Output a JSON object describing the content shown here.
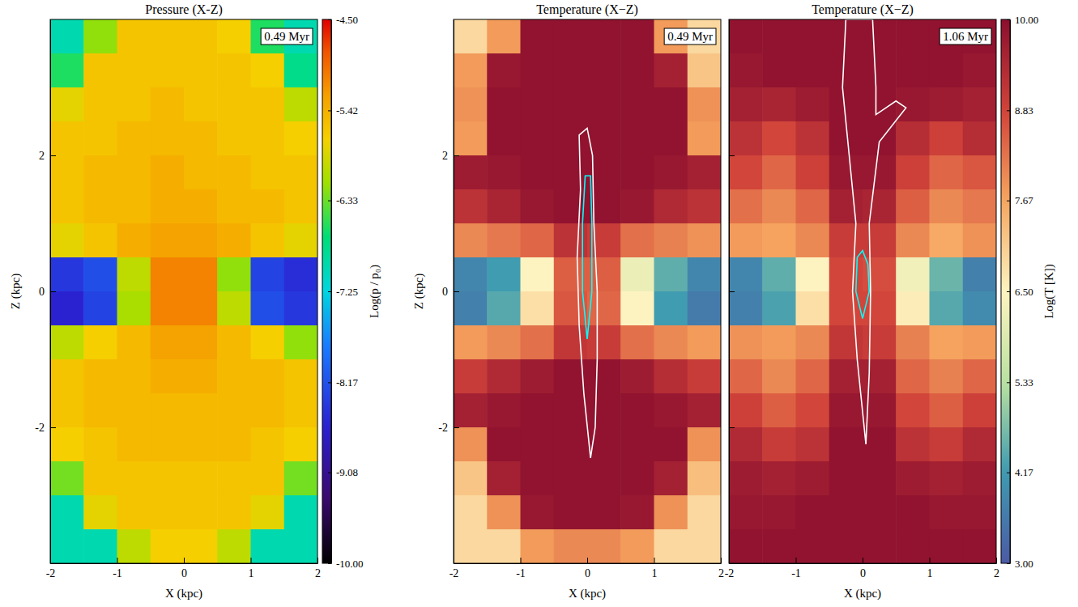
{
  "chart_data": [
    {
      "type": "heatmap",
      "title": "Pressure (X-Z)",
      "x_label": "X (kpc)",
      "y_label": "Z (kpc)",
      "annotation": "0.49 Myr",
      "xlim": [
        -2,
        2
      ],
      "ylim": [
        -4,
        4
      ],
      "xticks": [
        -2,
        -1,
        0,
        1,
        2
      ],
      "yticks": [
        -2,
        0,
        2
      ],
      "color": "jet",
      "color_range": [
        -10,
        -4.5
      ],
      "colorbar": {
        "label": "Log(p / p₀)",
        "ticks": [
          {
            "value": -4.5,
            "label": "-4.50"
          },
          {
            "value": -5.42,
            "label": "-5.42"
          },
          {
            "value": -6.33,
            "label": "-6.33"
          },
          {
            "value": -7.25,
            "label": "-7.25"
          },
          {
            "value": -8.17,
            "label": "-8.17"
          },
          {
            "value": -9.08,
            "label": "-9.08"
          },
          {
            "value": -10,
            "label": "-10.00"
          }
        ]
      },
      "x": [
        -1.75,
        -1.25,
        -0.75,
        -0.25,
        0.25,
        0.75,
        1.25,
        1.75
      ],
      "y": [
        3.75,
        3.25,
        2.75,
        2.25,
        1.75,
        1.25,
        0.75,
        0.25,
        -0.25,
        -0.75,
        -1.25,
        -1.75,
        -2.25,
        -2.75,
        -3.25,
        -3.75
      ],
      "values": [
        [
          -7.0,
          -6.2,
          -5.6,
          -5.6,
          -5.6,
          -5.7,
          -6.6,
          -7.0
        ],
        [
          -6.6,
          -5.6,
          -5.6,
          -5.6,
          -5.6,
          -5.6,
          -5.7,
          -6.8
        ],
        [
          -5.8,
          -5.6,
          -5.6,
          -5.5,
          -5.6,
          -5.6,
          -5.6,
          -6.0
        ],
        [
          -5.6,
          -5.6,
          -5.5,
          -5.5,
          -5.5,
          -5.6,
          -5.6,
          -5.7
        ],
        [
          -5.6,
          -5.5,
          -5.5,
          -5.4,
          -5.5,
          -5.5,
          -5.6,
          -5.6
        ],
        [
          -5.6,
          -5.5,
          -5.5,
          -5.4,
          -5.4,
          -5.5,
          -5.5,
          -5.6
        ],
        [
          -5.8,
          -5.6,
          -5.4,
          -5.3,
          -5.3,
          -5.4,
          -5.6,
          -5.8
        ],
        [
          -8.4,
          -8.2,
          -6.0,
          -5.1,
          -5.1,
          -6.2,
          -8.3,
          -8.5
        ],
        [
          -8.6,
          -8.3,
          -6.1,
          -5.1,
          -5.1,
          -6.0,
          -8.2,
          -8.4
        ],
        [
          -6.0,
          -5.7,
          -5.5,
          -5.3,
          -5.3,
          -5.5,
          -5.7,
          -6.2
        ],
        [
          -5.6,
          -5.5,
          -5.5,
          -5.4,
          -5.4,
          -5.5,
          -5.5,
          -5.6
        ],
        [
          -5.6,
          -5.5,
          -5.5,
          -5.5,
          -5.5,
          -5.5,
          -5.5,
          -5.6
        ],
        [
          -5.7,
          -5.6,
          -5.5,
          -5.5,
          -5.5,
          -5.5,
          -5.6,
          -5.7
        ],
        [
          -6.3,
          -5.6,
          -5.6,
          -5.6,
          -5.6,
          -5.6,
          -5.6,
          -6.3
        ],
        [
          -7.0,
          -5.8,
          -5.6,
          -5.6,
          -5.6,
          -5.6,
          -5.8,
          -7.0
        ],
        [
          -7.0,
          -7.0,
          -6.0,
          -5.7,
          -5.7,
          -6.0,
          -7.0,
          -7.0
        ]
      ]
    },
    {
      "type": "heatmap",
      "title": "Temperature (X−Z)",
      "x_label": "X (kpc)",
      "y_label": "Z (kpc)",
      "annotation": "0.49 Myr",
      "xlim": [
        -2,
        2
      ],
      "ylim": [
        -4,
        4
      ],
      "xticks": [
        -2,
        -1,
        0,
        1,
        2
      ],
      "yticks": [
        -2,
        0,
        2
      ],
      "color": "spectral",
      "color_range": [
        3,
        10
      ],
      "x": [
        -1.75,
        -1.25,
        -0.75,
        -0.25,
        0.25,
        0.75,
        1.25,
        1.75
      ],
      "y": [
        3.75,
        3.25,
        2.75,
        2.25,
        1.75,
        1.25,
        0.75,
        0.25,
        -0.25,
        -0.75,
        -1.25,
        -1.75,
        -2.25,
        -2.75,
        -3.25,
        -3.75
      ],
      "values": [
        [
          6.9,
          7.8,
          9.9,
          9.9,
          9.9,
          9.9,
          7.8,
          6.9
        ],
        [
          7.8,
          9.8,
          9.9,
          9.9,
          9.9,
          9.9,
          9.6,
          7.2
        ],
        [
          7.9,
          9.9,
          9.9,
          9.9,
          9.9,
          9.9,
          9.9,
          7.9
        ],
        [
          7.8,
          9.9,
          9.9,
          9.9,
          9.9,
          9.9,
          9.9,
          7.8
        ],
        [
          9.7,
          9.8,
          9.9,
          9.9,
          9.9,
          9.9,
          9.8,
          9.6
        ],
        [
          9.2,
          9.5,
          9.8,
          9.9,
          9.9,
          9.8,
          9.4,
          9.2
        ],
        [
          8.0,
          8.2,
          8.4,
          9.2,
          9.0,
          8.3,
          8.1,
          7.9
        ],
        [
          3.8,
          4.2,
          6.5,
          8.5,
          8.5,
          6.2,
          4.5,
          3.8
        ],
        [
          3.7,
          4.4,
          6.8,
          8.6,
          8.4,
          6.5,
          4.2,
          3.6
        ],
        [
          7.8,
          8.0,
          8.3,
          9.1,
          9.0,
          8.3,
          8.0,
          7.8
        ],
        [
          9.0,
          9.4,
          9.7,
          9.9,
          9.9,
          9.7,
          9.3,
          9.0
        ],
        [
          9.6,
          9.8,
          9.9,
          9.9,
          9.9,
          9.9,
          9.8,
          9.6
        ],
        [
          7.9,
          9.9,
          9.9,
          9.9,
          9.9,
          9.9,
          9.9,
          7.9
        ],
        [
          7.2,
          9.6,
          9.9,
          9.9,
          9.9,
          9.9,
          9.6,
          7.3
        ],
        [
          6.9,
          7.9,
          9.8,
          9.9,
          9.9,
          9.8,
          7.9,
          6.9
        ],
        [
          6.9,
          6.9,
          7.8,
          8.0,
          8.0,
          7.8,
          6.9,
          6.9
        ]
      ],
      "contours": [
        {
          "color": "white",
          "x": [
            0.05,
            -0.05,
            -0.12,
            -0.15,
            -0.1,
            -0.12,
            0.0,
            0.08,
            0.1,
            0.15,
            0.15,
            0.12,
            0.05
          ],
          "y": [
            -2.45,
            -1.5,
            -0.5,
            0.5,
            1.5,
            2.3,
            2.4,
            2.0,
            1.0,
            0.0,
            -1.0,
            -2.0,
            -2.45
          ]
        },
        {
          "color": "cyan",
          "x": [
            0.0,
            -0.07,
            -0.07,
            -0.03,
            0.05,
            0.07,
            0.07,
            0.0
          ],
          "y": [
            -0.7,
            0.0,
            1.0,
            1.7,
            1.7,
            1.0,
            0.0,
            -0.7
          ]
        }
      ]
    },
    {
      "type": "heatmap",
      "title": "Temperature (X−Z)",
      "x_label": "X (kpc)",
      "annotation": "1.06 Myr",
      "tick_labels": "x",
      "xlim": [
        -2,
        2
      ],
      "ylim": [
        -4,
        4
      ],
      "xticks": [
        -2,
        -1,
        0,
        1,
        2
      ],
      "yticks": [
        -2,
        0,
        2
      ],
      "color": "spectral",
      "color_range": [
        3,
        10
      ],
      "colorbar": {
        "label": "Log(T [K])",
        "ticks": [
          {
            "value": 10,
            "label": "10.00"
          },
          {
            "value": 8.83,
            "label": "8.83"
          },
          {
            "value": 7.67,
            "label": "7.67"
          },
          {
            "value": 6.5,
            "label": "6.50"
          },
          {
            "value": 5.33,
            "label": "5.33"
          },
          {
            "value": 4.17,
            "label": "4.17"
          },
          {
            "value": 3,
            "label": "3.00"
          }
        ]
      },
      "x": [
        -1.75,
        -1.25,
        -0.75,
        -0.25,
        0.25,
        0.75,
        1.25,
        1.75
      ],
      "y": [
        3.75,
        3.25,
        2.75,
        2.25,
        1.75,
        1.25,
        0.75,
        0.25,
        -0.25,
        -0.75,
        -1.25,
        -1.75,
        -2.25,
        -2.75,
        -3.25,
        -3.75
      ],
      "values": [
        [
          9.9,
          9.9,
          9.9,
          9.9,
          9.9,
          9.9,
          9.9,
          9.9
        ],
        [
          9.8,
          9.9,
          9.9,
          9.9,
          9.9,
          9.9,
          9.9,
          9.8
        ],
        [
          9.6,
          9.5,
          9.7,
          9.9,
          9.9,
          9.8,
          9.7,
          9.6
        ],
        [
          9.2,
          8.8,
          9.2,
          9.9,
          9.9,
          9.3,
          8.9,
          9.3
        ],
        [
          8.8,
          8.4,
          8.9,
          9.8,
          9.8,
          8.9,
          8.4,
          8.6
        ],
        [
          8.3,
          8.0,
          8.4,
          9.6,
          9.5,
          8.5,
          8.0,
          8.2
        ],
        [
          7.8,
          7.7,
          8.0,
          9.0,
          9.0,
          8.0,
          7.6,
          7.9
        ],
        [
          3.8,
          4.5,
          6.5,
          8.8,
          8.7,
          6.3,
          4.6,
          3.7
        ],
        [
          3.7,
          4.3,
          6.8,
          8.8,
          8.8,
          6.6,
          4.4,
          3.9
        ],
        [
          7.9,
          7.8,
          8.0,
          9.1,
          9.0,
          8.1,
          7.7,
          7.8
        ],
        [
          8.4,
          8.0,
          8.4,
          9.6,
          9.6,
          8.4,
          8.1,
          8.4
        ],
        [
          8.9,
          8.5,
          8.8,
          9.8,
          9.8,
          8.8,
          8.5,
          8.9
        ],
        [
          9.4,
          9.0,
          9.2,
          9.9,
          9.9,
          9.2,
          9.0,
          9.4
        ],
        [
          9.7,
          9.6,
          9.7,
          9.9,
          9.9,
          9.7,
          9.6,
          9.7
        ],
        [
          9.8,
          9.8,
          9.9,
          9.9,
          9.9,
          9.9,
          9.8,
          9.8
        ],
        [
          9.9,
          9.9,
          9.9,
          9.9,
          9.9,
          9.9,
          9.9,
          9.9
        ]
      ],
      "contours": [
        {
          "color": "white",
          "x": [
            0.05,
            -0.08,
            -0.15,
            -0.1,
            -0.2,
            -0.3,
            -0.25,
            0.15,
            0.2,
            0.2,
            0.5,
            0.65,
            0.25,
            0.1,
            0.12,
            0.1,
            0.05
          ],
          "y": [
            -2.25,
            -1.0,
            0.0,
            1.0,
            2.0,
            3.0,
            4.0,
            4.0,
            3.0,
            2.6,
            2.8,
            2.7,
            2.2,
            1.0,
            0.0,
            -1.2,
            -2.25
          ]
        },
        {
          "color": "cyan",
          "x": [
            0.0,
            -0.1,
            -0.08,
            0.0,
            0.08,
            0.1,
            0.0
          ],
          "y": [
            -0.4,
            0.0,
            0.5,
            0.6,
            0.4,
            0.0,
            -0.4
          ]
        }
      ]
    }
  ]
}
